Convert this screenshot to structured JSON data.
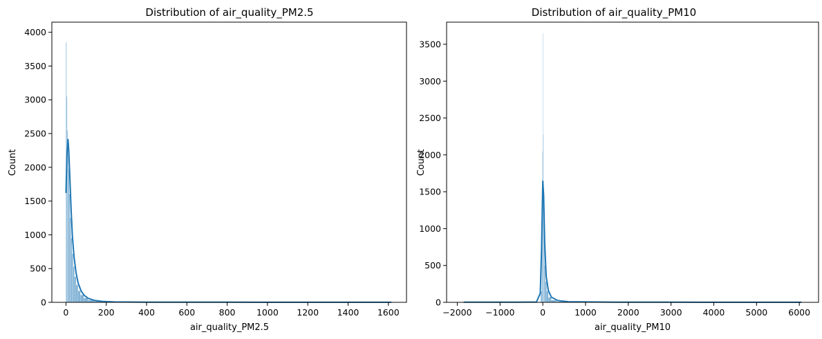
{
  "chart_data": [
    {
      "type": "histogram",
      "title": "Distribution of air_quality_PM2.5",
      "xlabel": "air_quality_PM2.5",
      "ylabel": "Count",
      "xlim": [
        -70,
        1690
      ],
      "ylim": [
        0,
        4150
      ],
      "xticks": [
        0,
        200,
        400,
        600,
        800,
        1000,
        1200,
        1400,
        1600
      ],
      "yticks": [
        0,
        500,
        1000,
        1500,
        2000,
        2500,
        3000,
        3500,
        4000
      ],
      "grid": false,
      "kde": true,
      "color": "#1f77b4",
      "bins": [
        [
          0,
          3,
          3850
        ],
        [
          3,
          6,
          3050
        ],
        [
          6,
          9,
          2550
        ],
        [
          9,
          12,
          2420
        ],
        [
          12,
          16,
          1980
        ],
        [
          16,
          20,
          1600
        ],
        [
          20,
          25,
          1250
        ],
        [
          25,
          30,
          950
        ],
        [
          30,
          36,
          720
        ],
        [
          36,
          42,
          530
        ],
        [
          42,
          50,
          380
        ],
        [
          50,
          60,
          260
        ],
        [
          60,
          72,
          170
        ],
        [
          72,
          88,
          110
        ],
        [
          88,
          110,
          65
        ],
        [
          110,
          140,
          35
        ],
        [
          140,
          180,
          18
        ],
        [
          180,
          240,
          8
        ],
        [
          240,
          1615,
          2
        ]
      ],
      "kde_points": [
        [
          0,
          1620
        ],
        [
          5,
          2200
        ],
        [
          10,
          2420
        ],
        [
          14,
          2250
        ],
        [
          20,
          1800
        ],
        [
          26,
          1350
        ],
        [
          32,
          980
        ],
        [
          40,
          680
        ],
        [
          50,
          440
        ],
        [
          60,
          290
        ],
        [
          75,
          170
        ],
        [
          90,
          105
        ],
        [
          110,
          60
        ],
        [
          140,
          30
        ],
        [
          180,
          14
        ],
        [
          240,
          6
        ],
        [
          400,
          3
        ],
        [
          800,
          2
        ],
        [
          1200,
          1
        ],
        [
          1615,
          1
        ]
      ]
    },
    {
      "type": "histogram",
      "title": "Distribution of air_quality_PM10",
      "xlabel": "air_quality_PM10",
      "ylabel": "Count",
      "xlim": [
        -2250,
        6450
      ],
      "ylim": [
        0,
        3800
      ],
      "xticks": [
        -2000,
        -1000,
        0,
        1000,
        2000,
        3000,
        4000,
        5000,
        6000
      ],
      "xtick_labels": [
        "−2000",
        "−1000",
        "0",
        "1000",
        "2000",
        "3000",
        "4000",
        "5000",
        "6000"
      ],
      "yticks": [
        0,
        500,
        1000,
        1500,
        2000,
        2500,
        3000,
        3500
      ],
      "grid": false,
      "kde": true,
      "color": "#1f77b4",
      "bins": [
        [
          -1850,
          -50,
          1
        ],
        [
          -50,
          -25,
          150
        ],
        [
          -25,
          -10,
          900
        ],
        [
          -10,
          0,
          2050
        ],
        [
          0,
          8,
          3650
        ],
        [
          8,
          16,
          2280
        ],
        [
          16,
          26,
          1450
        ],
        [
          26,
          40,
          850
        ],
        [
          40,
          60,
          500
        ],
        [
          60,
          90,
          280
        ],
        [
          90,
          130,
          150
        ],
        [
          130,
          200,
          70
        ],
        [
          200,
          320,
          30
        ],
        [
          320,
          550,
          10
        ],
        [
          550,
          6050,
          2
        ]
      ],
      "kde_points": [
        [
          -1850,
          2
        ],
        [
          -600,
          2
        ],
        [
          -150,
          4
        ],
        [
          -60,
          120
        ],
        [
          -30,
          700
        ],
        [
          0,
          1650
        ],
        [
          20,
          1450
        ],
        [
          45,
          800
        ],
        [
          80,
          350
        ],
        [
          130,
          160
        ],
        [
          200,
          70
        ],
        [
          350,
          25
        ],
        [
          600,
          8
        ],
        [
          1500,
          3
        ],
        [
          3000,
          2
        ],
        [
          6050,
          1
        ]
      ]
    }
  ]
}
